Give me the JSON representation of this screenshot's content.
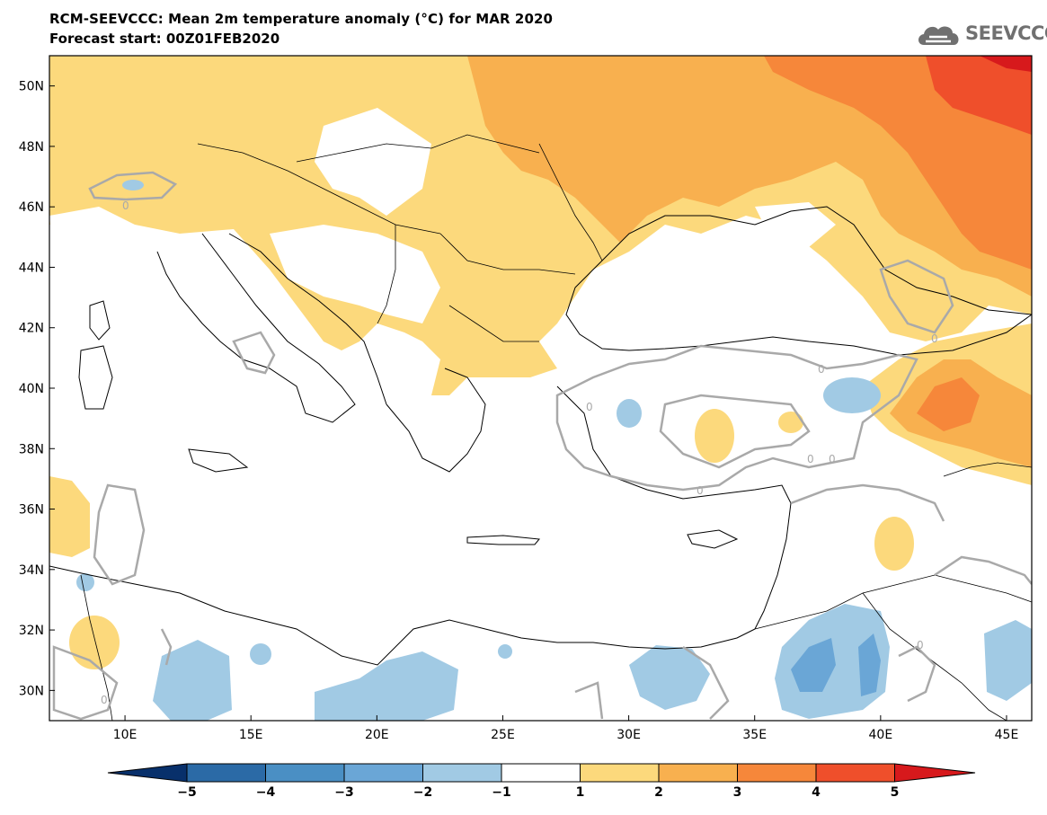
{
  "header": {
    "title": "RCM-SEEVCCC: Mean 2m temperature anomaly (°C) for MAR 2020",
    "subtitle": "Forecast start: 00Z01FEB2020",
    "logo_text": "SEEVCCC",
    "logo_icon": "cloud-icon"
  },
  "map": {
    "lon_range": [
      7,
      46
    ],
    "lat_range": [
      29,
      51
    ],
    "lat_labels": [
      "50N",
      "48N",
      "46N",
      "44N",
      "42N",
      "40N",
      "38N",
      "36N",
      "34N",
      "32N",
      "30N"
    ],
    "lon_labels": [
      "10E",
      "15E",
      "20E",
      "25E",
      "30E",
      "35E",
      "40E",
      "45E"
    ],
    "contour_label": "0",
    "zero_contour_color": "#a9a9a9"
  },
  "colorbar": {
    "labels": [
      "−5",
      "−4",
      "−3",
      "−2",
      "−1",
      "1",
      "2",
      "3",
      "4",
      "5"
    ],
    "colors": [
      "#08306b",
      "#2b6aa6",
      "#4a8fc4",
      "#6aa6d6",
      "#a1cae4",
      "#ffffff",
      "#fcd97c",
      "#f8b04f",
      "#f6873a",
      "#ef4f2b",
      "#d7191c"
    ]
  }
}
